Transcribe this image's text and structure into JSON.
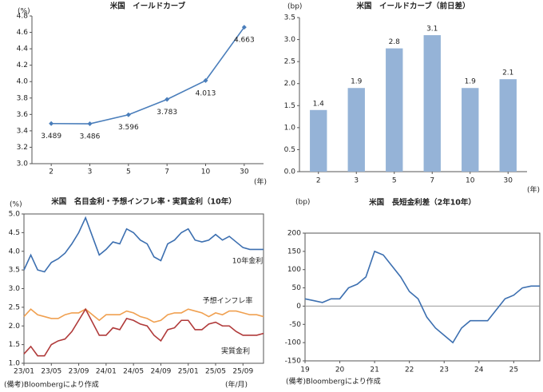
{
  "source": "(備考)Bloombergにより作成",
  "chart_data": [
    {
      "type": "line",
      "title": "米国　イールドカーブ",
      "y_label": "(%)",
      "x_label": "(年)",
      "categories": [
        "2",
        "3",
        "5",
        "7",
        "10",
        "30"
      ],
      "values": [
        3.489,
        3.486,
        3.596,
        3.783,
        4.013,
        4.663
      ],
      "color": "#4a7ebb",
      "ylim": [
        3.0,
        4.8
      ],
      "yticks": [
        {
          "value": 3.0,
          "label": "3.0"
        },
        3.2,
        3.4,
        3.6,
        3.8,
        {
          "value": 4.0,
          "label": "4.0"
        },
        4.2,
        4.4,
        4.6,
        4.8
      ]
    },
    {
      "type": "bar",
      "title": "米国　イールドカーブ（前日差）",
      "y_label": "(bp)",
      "x_label": "(年)",
      "categories": [
        "2",
        "3",
        "5",
        "7",
        "10",
        "30"
      ],
      "values": [
        1.4,
        1.9,
        2.8,
        3.1,
        1.9,
        2.1
      ],
      "color": "#95b3d7",
      "ylim": [
        0.0,
        3.5
      ],
      "yticks": [
        {
          "value": 0.0,
          "label": "0.0"
        },
        0.5,
        {
          "value": 1.0,
          "label": "1.0"
        },
        1.5,
        {
          "value": 2.0,
          "label": "2.0"
        },
        2.5,
        {
          "value": 3.0,
          "label": "3.0"
        },
        3.5
      ]
    },
    {
      "type": "line",
      "title": "米国　名目金利・予想インフレ率・実質金利（10年）",
      "y_label": "(%)",
      "x_label": "(年/月)",
      "categories": [
        "23/01",
        null,
        null,
        null,
        "23/05",
        null,
        null,
        null,
        "23/09",
        null,
        null,
        null,
        "24/01",
        null,
        null,
        null,
        "24/05",
        null,
        null,
        null,
        "24/09",
        null,
        null,
        null,
        "25/01",
        null,
        null,
        null,
        "25/05",
        null,
        null,
        null,
        "25/09",
        null,
        null,
        null
      ],
      "series": [
        {
          "name": "10年金利",
          "color": "#3c6fb0",
          "values": [
            3.5,
            3.9,
            3.5,
            3.45,
            3.7,
            3.8,
            3.95,
            4.2,
            4.5,
            4.9,
            4.4,
            3.9,
            4.05,
            4.25,
            4.2,
            4.6,
            4.5,
            4.3,
            4.2,
            3.85,
            3.75,
            4.2,
            4.3,
            4.5,
            4.6,
            4.3,
            4.25,
            4.3,
            4.45,
            4.3,
            4.4,
            4.25,
            4.1,
            4.05,
            4.05,
            4.05
          ]
        },
        {
          "name": "予想インフレ率",
          "color": "#f0a050",
          "values": [
            2.25,
            2.45,
            2.3,
            2.25,
            2.2,
            2.2,
            2.3,
            2.35,
            2.35,
            2.45,
            2.3,
            2.15,
            2.3,
            2.3,
            2.3,
            2.4,
            2.35,
            2.25,
            2.2,
            2.1,
            2.15,
            2.3,
            2.35,
            2.35,
            2.45,
            2.4,
            2.35,
            2.25,
            2.35,
            2.3,
            2.4,
            2.4,
            2.35,
            2.3,
            2.3,
            2.25
          ]
        },
        {
          "name": "実質金利",
          "color": "#b03a3a",
          "values": [
            1.25,
            1.45,
            1.2,
            1.2,
            1.5,
            1.6,
            1.65,
            1.85,
            2.15,
            2.45,
            2.1,
            1.75,
            1.75,
            1.95,
            1.9,
            2.2,
            2.15,
            2.05,
            2.0,
            1.75,
            1.6,
            1.9,
            1.95,
            2.15,
            2.15,
            1.9,
            1.9,
            2.05,
            2.1,
            2.0,
            2.0,
            1.85,
            1.75,
            1.75,
            1.75,
            1.8
          ]
        }
      ],
      "ylim": [
        1.0,
        5.0
      ],
      "yticks": [
        {
          "value": 1.0,
          "label": "1.0"
        },
        1.5,
        {
          "value": 2.0,
          "label": "2.0"
        },
        2.5,
        {
          "value": 3.0,
          "label": "3.0"
        },
        3.5,
        {
          "value": 4.0,
          "label": "4.0"
        },
        4.5,
        {
          "value": 5.0,
          "label": "5.0"
        }
      ]
    },
    {
      "type": "line",
      "title": "米国　長短金利差（2年10年）",
      "y_label": "(bp)",
      "categories": [
        "19",
        null,
        null,
        null,
        "20",
        null,
        null,
        null,
        "21",
        null,
        null,
        null,
        "22",
        null,
        null,
        null,
        "23",
        null,
        null,
        null,
        "24",
        null,
        null,
        null,
        "25",
        null,
        null,
        null
      ],
      "values": [
        20,
        15,
        10,
        20,
        20,
        50,
        60,
        80,
        150,
        140,
        110,
        80,
        40,
        20,
        -30,
        -60,
        -80,
        -100,
        -60,
        -40,
        -40,
        -40,
        -10,
        20,
        30,
        50,
        55,
        55
      ],
      "color": "#3c6fb0",
      "zero_line": true,
      "ylim": [
        -150,
        200
      ],
      "yticks": [
        -150,
        -100,
        -50,
        0,
        50,
        100,
        150,
        200
      ]
    }
  ]
}
